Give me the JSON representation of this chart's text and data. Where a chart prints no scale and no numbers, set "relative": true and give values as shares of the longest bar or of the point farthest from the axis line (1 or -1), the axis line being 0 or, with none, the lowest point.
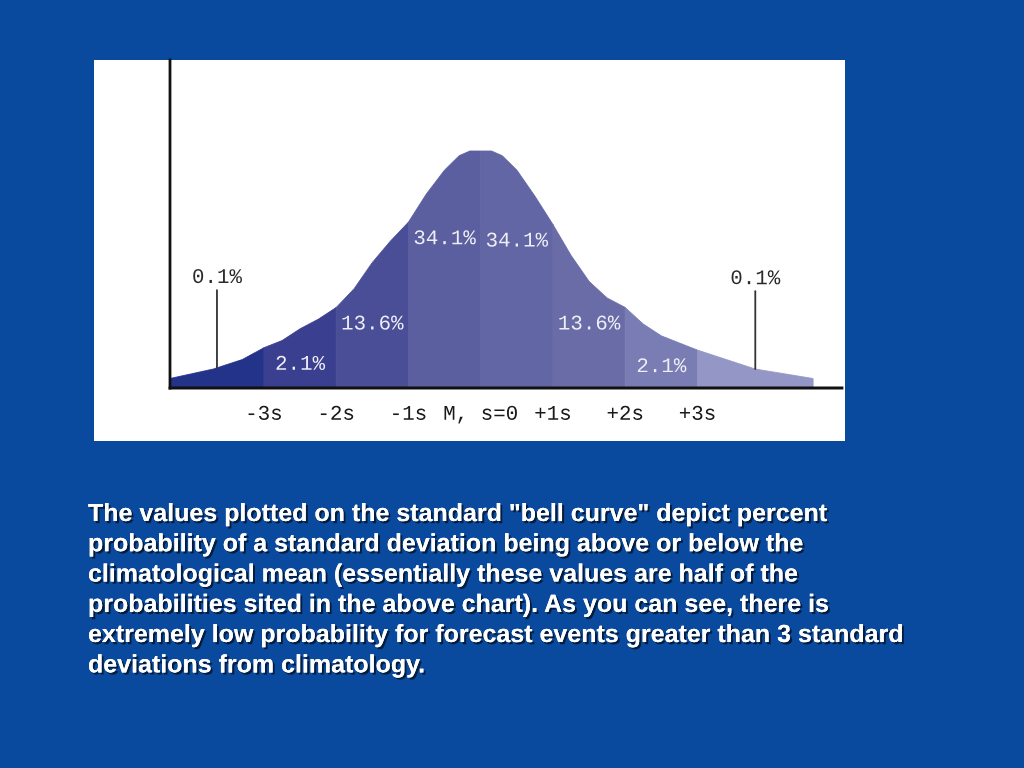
{
  "chart_data": {
    "type": "area",
    "relative": true,
    "tick_labels": "x",
    "xlim": [
      -4.3,
      5.0
    ],
    "xticks": [
      {
        "value": -3,
        "label": "-3s"
      },
      {
        "value": -2,
        "label": "-2s"
      },
      {
        "value": -1,
        "label": "-1s"
      },
      {
        "value": 0,
        "label": "M, s=0"
      },
      {
        "value": 1,
        "label": "+1s"
      },
      {
        "value": 2,
        "label": "+2s"
      },
      {
        "value": 3,
        "label": "+3s"
      }
    ],
    "series": [
      {
        "name": "0.1%",
        "color": "#23338a",
        "x": [
          -4.3,
          -4.0,
          -3.7,
          -3.3,
          -3
        ],
        "values": [
          0.04,
          0.06,
          0.08,
          0.12,
          0.17
        ]
      },
      {
        "name": "2.1%",
        "color": "#3b3f8f",
        "x": [
          -3,
          -2.75,
          -2.5,
          -2.25,
          -2
        ],
        "values": [
          0.17,
          0.2,
          0.25,
          0.29,
          0.34
        ]
      },
      {
        "name": "13.6%",
        "color": "#4a4e97",
        "x": [
          -2,
          -1.75,
          -1.5,
          -1.25,
          -1
        ],
        "values": [
          0.34,
          0.42,
          0.53,
          0.62,
          0.7
        ]
      },
      {
        "name": "34.1%",
        "color": "#5b5e9f",
        "x": [
          -1,
          -0.75,
          -0.5,
          -0.3,
          -0.15,
          0
        ],
        "values": [
          0.7,
          0.82,
          0.92,
          0.98,
          1,
          1
        ]
      },
      {
        "name": "34.1%",
        "color": "#6366a4",
        "x": [
          0,
          0.15,
          0.3,
          0.5,
          0.75,
          1
        ],
        "values": [
          1,
          1,
          0.98,
          0.92,
          0.81,
          0.69
        ]
      },
      {
        "name": "13.6%",
        "color": "#6a6ca8",
        "x": [
          1,
          1.25,
          1.5,
          1.75,
          2
        ],
        "values": [
          0.69,
          0.56,
          0.45,
          0.38,
          0.34
        ]
      },
      {
        "name": "2.1%",
        "color": "#7a7db4",
        "x": [
          2,
          2.25,
          2.5,
          2.75,
          3
        ],
        "values": [
          0.34,
          0.27,
          0.22,
          0.19,
          0.16
        ]
      },
      {
        "name": "0.1%",
        "color": "#9497c5",
        "x": [
          3,
          3.4,
          3.8,
          4.2,
          4.6
        ],
        "values": [
          0.16,
          0.12,
          0.08,
          0.06,
          0.04
        ]
      }
    ],
    "annotations": [
      "The values plotted on the standard \"bell curve\" depict percent probability of a standard deviation being above or below the climatological mean (essentially these values are half of the probabilities sited in the above chart). As you can see, there is extremely low probability for forecast events greater than 3 standard deviations from climatology."
    ]
  }
}
